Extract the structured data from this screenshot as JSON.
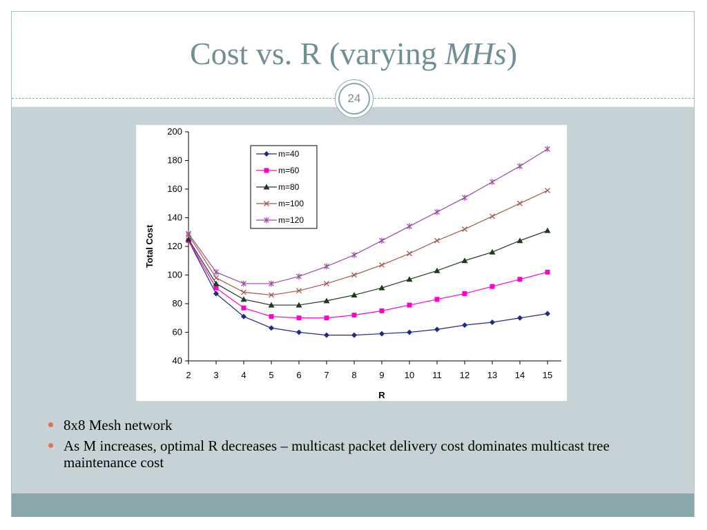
{
  "slide": {
    "title_main": "Cost vs. R (varying ",
    "title_italic": "MHs",
    "title_end": ")",
    "page_number": "24",
    "bullets": [
      "8x8 Mesh network",
      "As M increases, optimal R decreases – multicast packet delivery cost dominates multicast tree maintenance cost"
    ]
  },
  "colors": {
    "title": "#6f8f93",
    "content_bg": "#c6d2d6",
    "footer_bg": "#8aa8ab",
    "bullet_dot": "#d9735a"
  },
  "chart_data": {
    "type": "line",
    "title": "",
    "xlabel": "R",
    "ylabel": "Total Cost",
    "x": [
      2,
      3,
      4,
      5,
      6,
      7,
      8,
      9,
      10,
      11,
      12,
      13,
      14,
      15
    ],
    "xlim": [
      2,
      15
    ],
    "ylim": [
      40,
      200
    ],
    "y_ticks": [
      40,
      60,
      80,
      100,
      120,
      140,
      160,
      180,
      200
    ],
    "grid": false,
    "legend_position": "top-left",
    "series": [
      {
        "name": "m=40",
        "color": "#1f2a80",
        "marker": "diamond",
        "values": [
          124,
          87,
          71,
          63,
          60,
          58,
          58,
          59,
          60,
          62,
          65,
          67,
          70,
          73
        ]
      },
      {
        "name": "m=60",
        "color": "#ff00cc",
        "marker": "square",
        "values": [
          124,
          91,
          77,
          71,
          70,
          70,
          72,
          75,
          79,
          83,
          87,
          92,
          97,
          102
        ]
      },
      {
        "name": "m=80",
        "color": "#1d3a1d",
        "marker": "triangle",
        "values": [
          125,
          94,
          83,
          79,
          79,
          82,
          86,
          91,
          97,
          103,
          110,
          116,
          124,
          131
        ]
      },
      {
        "name": "m=100",
        "color": "#a4554a",
        "marker": "x",
        "values": [
          128,
          98,
          88,
          86,
          89,
          94,
          100,
          107,
          115,
          124,
          132,
          141,
          150,
          159
        ]
      },
      {
        "name": "m=120",
        "color": "#9a4aa0",
        "marker": "star",
        "values": [
          129,
          102,
          94,
          94,
          99,
          106,
          114,
          124,
          134,
          144,
          154,
          165,
          176,
          188
        ]
      }
    ]
  }
}
